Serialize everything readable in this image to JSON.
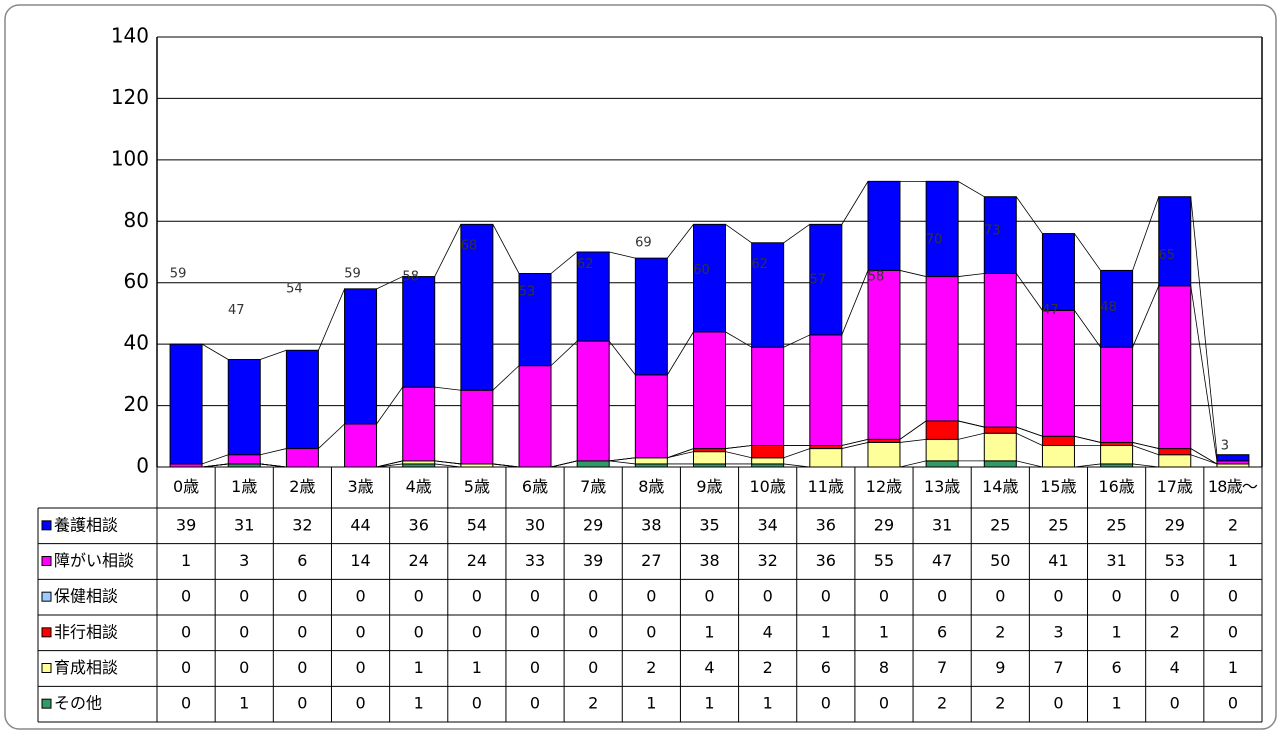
{
  "chart_data": {
    "type": "stacked_bar",
    "categories": [
      "0歳",
      "1歳",
      "2歳",
      "3歳",
      "4歳",
      "5歳",
      "6歳",
      "7歳",
      "8歳",
      "9歳",
      "10歳",
      "11歳",
      "12歳",
      "13歳",
      "14歳",
      "15歳",
      "16歳",
      "17歳",
      "18歳～"
    ],
    "series": [
      {
        "name": "養護相談",
        "color": "#0000ff",
        "values": [
          39,
          31,
          32,
          44,
          36,
          54,
          30,
          29,
          38,
          35,
          34,
          36,
          29,
          31,
          25,
          25,
          25,
          29,
          2
        ]
      },
      {
        "name": "障がい相談",
        "color": "#ff00ff",
        "values": [
          1,
          3,
          6,
          14,
          24,
          24,
          33,
          39,
          27,
          38,
          32,
          36,
          55,
          47,
          50,
          41,
          31,
          53,
          1
        ]
      },
      {
        "name": "保健相談",
        "color": "#99ccff",
        "values": [
          0,
          0,
          0,
          0,
          0,
          0,
          0,
          0,
          0,
          0,
          0,
          0,
          0,
          0,
          0,
          0,
          0,
          0,
          0
        ]
      },
      {
        "name": "非行相談",
        "color": "#ff0000",
        "values": [
          0,
          0,
          0,
          0,
          0,
          0,
          0,
          0,
          0,
          1,
          4,
          1,
          1,
          6,
          2,
          3,
          1,
          2,
          0
        ]
      },
      {
        "name": "育成相談",
        "color": "#ffff99",
        "values": [
          0,
          0,
          0,
          0,
          1,
          1,
          0,
          0,
          2,
          4,
          2,
          6,
          8,
          7,
          9,
          7,
          6,
          4,
          1
        ]
      },
      {
        "name": "その他",
        "color": "#339966",
        "values": [
          0,
          1,
          0,
          0,
          1,
          0,
          0,
          2,
          1,
          1,
          1,
          0,
          0,
          2,
          2,
          0,
          1,
          0,
          0
        ]
      }
    ],
    "annotations": [
      59,
      47,
      54,
      59,
      58,
      68,
      53,
      62,
      69,
      60,
      62,
      57,
      58,
      70,
      73,
      47,
      48,
      65,
      3
    ],
    "ylim": [
      0,
      140
    ],
    "yticks": [
      0,
      20,
      40,
      60,
      80,
      100,
      120,
      140
    ],
    "grid": true
  }
}
